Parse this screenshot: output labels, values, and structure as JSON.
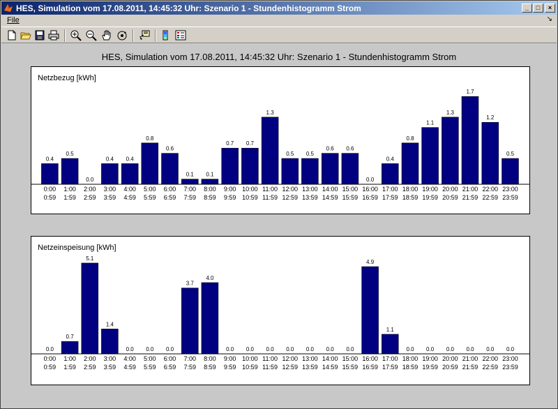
{
  "window": {
    "title": "HES, Simulation vom 17.08.2011, 14:45:32 Uhr:  Szenario 1 - Stundenhistogramm Strom",
    "buttons": {
      "minimize": "_",
      "maximize": "□",
      "close": "×"
    }
  },
  "menu": {
    "file": "File",
    "dock_arrow": "↘"
  },
  "toolbar": {
    "items": [
      "new-figure",
      "open-file",
      "save",
      "print",
      "zoom-in",
      "zoom-out",
      "pan",
      "rotate-3d",
      "data-cursor",
      "colorbar",
      "legend"
    ]
  },
  "figure": {
    "title": "HES, Simulation vom 17.08.2011, 14:45:32 Uhr:  Szenario 1 - Stundenhistogramm Strom"
  },
  "colors": {
    "bar": "#000080",
    "titlebar_start": "#0a246a",
    "titlebar_end": "#a6caf0",
    "figure_bg": "#c8c8c8"
  },
  "chart_data": [
    {
      "type": "bar",
      "title": "Netzbezug [kWh]",
      "categories_top": [
        "0:00",
        "1:00",
        "2:00",
        "3:00",
        "4:00",
        "5:00",
        "6:00",
        "7:00",
        "8:00",
        "9:00",
        "10:00",
        "11:00",
        "12:00",
        "13:00",
        "14:00",
        "15:00",
        "16:00",
        "17:00",
        "18:00",
        "19:00",
        "20:00",
        "21:00",
        "22:00",
        "23:00"
      ],
      "categories_bottom": [
        "0:59",
        "1:59",
        "2:59",
        "3:59",
        "4:59",
        "5:59",
        "6:59",
        "7:59",
        "8:59",
        "9:59",
        "10:59",
        "11:59",
        "12:59",
        "13:59",
        "14:59",
        "15:59",
        "16:59",
        "17:59",
        "18:59",
        "19:59",
        "20:59",
        "21:59",
        "22:59",
        "23:59"
      ],
      "values": [
        0.4,
        0.5,
        0.0,
        0.4,
        0.4,
        0.8,
        0.6,
        0.1,
        0.1,
        0.7,
        0.7,
        1.3,
        0.5,
        0.5,
        0.6,
        0.6,
        0.0,
        0.4,
        0.8,
        1.1,
        1.3,
        1.7,
        1.2,
        0.5
      ],
      "labels": [
        "0.4",
        "0.5",
        "0.0",
        "0.4",
        "0.4",
        "0.8",
        "0.6",
        "0.1",
        "0.1",
        "0.7",
        "0.7",
        "1.3",
        "0.5",
        "0.5",
        "0.6",
        "0.6",
        "0.0",
        "0.4",
        "0.8",
        "1.1",
        "1.3",
        "1.7",
        "1.2",
        "0.5"
      ],
      "ylim": [
        0,
        2.0
      ],
      "grid": false
    },
    {
      "type": "bar",
      "title": "Netzeinspeisung [kWh]",
      "categories_top": [
        "0:00",
        "1:00",
        "2:00",
        "3:00",
        "4:00",
        "5:00",
        "6:00",
        "7:00",
        "8:00",
        "9:00",
        "10:00",
        "11:00",
        "12:00",
        "13:00",
        "14:00",
        "15:00",
        "16:00",
        "17:00",
        "18:00",
        "19:00",
        "20:00",
        "21:00",
        "22:00",
        "23:00"
      ],
      "categories_bottom": [
        "0:59",
        "1:59",
        "2:59",
        "3:59",
        "4:59",
        "5:59",
        "6:59",
        "7:59",
        "8:59",
        "9:59",
        "10:59",
        "11:59",
        "12:59",
        "13:59",
        "14:59",
        "15:59",
        "16:59",
        "17:59",
        "18:59",
        "19:59",
        "20:59",
        "21:59",
        "22:59",
        "23:59"
      ],
      "values": [
        0.0,
        0.7,
        5.1,
        1.4,
        0.0,
        0.0,
        0.0,
        3.7,
        4.0,
        0.0,
        0.0,
        0.0,
        0.0,
        0.0,
        0.0,
        0.0,
        4.9,
        1.1,
        0.0,
        0.0,
        0.0,
        0.0,
        0.0,
        0.0
      ],
      "labels": [
        "0.0",
        "0.7",
        "5.1",
        "1.4",
        "0.0",
        "0.0",
        "0.0",
        "3.7",
        "4.0",
        "0.0",
        "0.0",
        "0.0",
        "0.0",
        "0.0",
        "0.0",
        "0.0",
        "4.9",
        "1.1",
        "0.0",
        "0.0",
        "0.0",
        "0.0",
        "0.0",
        "0.0"
      ],
      "ylim": [
        0,
        5.8
      ],
      "grid": false
    }
  ]
}
